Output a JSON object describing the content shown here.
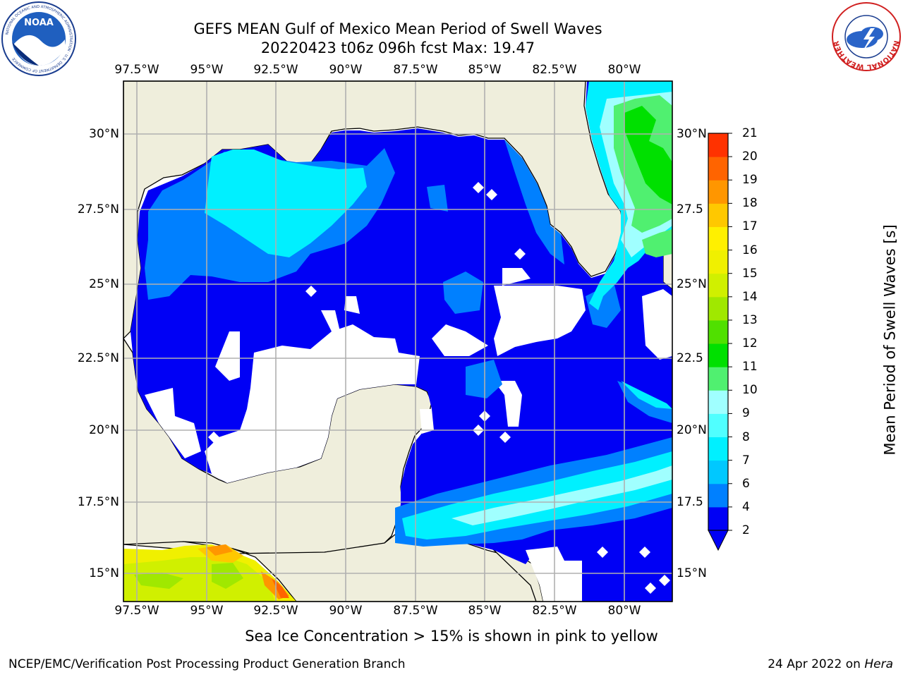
{
  "title": {
    "line1": "GEFS MEAN Gulf of Mexico Mean Period of Swell Waves",
    "line2": "20220423 t06z 096h fcst   Max: 19.47"
  },
  "map": {
    "lon_ticks": [
      "97.5°W",
      "95°W",
      "92.5°W",
      "90°W",
      "87.5°W",
      "85°W",
      "82.5°W",
      "80°W"
    ],
    "lat_ticks_left": [
      "30°N",
      "27.5°N",
      "25°N",
      "22.5°N",
      "20°N",
      "17.5°N",
      "15°N"
    ],
    "lat_ticks_right": [
      "30°N",
      "27.5",
      "25°N",
      "22.5",
      "20°N",
      "17.5",
      "15°N"
    ],
    "land_color": "#efeedc",
    "grid_color": "#b0b0b0"
  },
  "colorbar": {
    "label": "Mean Period of Swell Waves [s]",
    "ticks": [
      "2",
      "4",
      "6",
      "7",
      "8",
      "9",
      "10",
      "11",
      "12",
      "13",
      "14",
      "15",
      "16",
      "17",
      "18",
      "19",
      "20",
      "21"
    ],
    "colors": [
      "#0000f5",
      "#0080ff",
      "#00c8ff",
      "#00f0ff",
      "#50ffff",
      "#a0ffff",
      "#50f070",
      "#00e000",
      "#50e000",
      "#a0e800",
      "#d0f000",
      "#f0f000",
      "#fff000",
      "#ffc800",
      "#ff9600",
      "#ff6400",
      "#ff3200",
      "#ff0000"
    ]
  },
  "caption": "Sea Ice Concentration > 15% is shown in pink to yellow",
  "footer": {
    "left": "NCEP/EMC/Verification Post Processing Product Generation Branch",
    "right_prefix": "24 Apr 2022 on ",
    "right_host": "Hera"
  },
  "logos": {
    "noaa_text": "NOAA",
    "noaa_ring": "NATIONAL OCEANIC AND ATMOSPHERIC ADMINISTRATION · U.S. DEPARTMENT OF COMMERCE",
    "nws_ring": "NATIONAL WEATHER SERVICE"
  }
}
